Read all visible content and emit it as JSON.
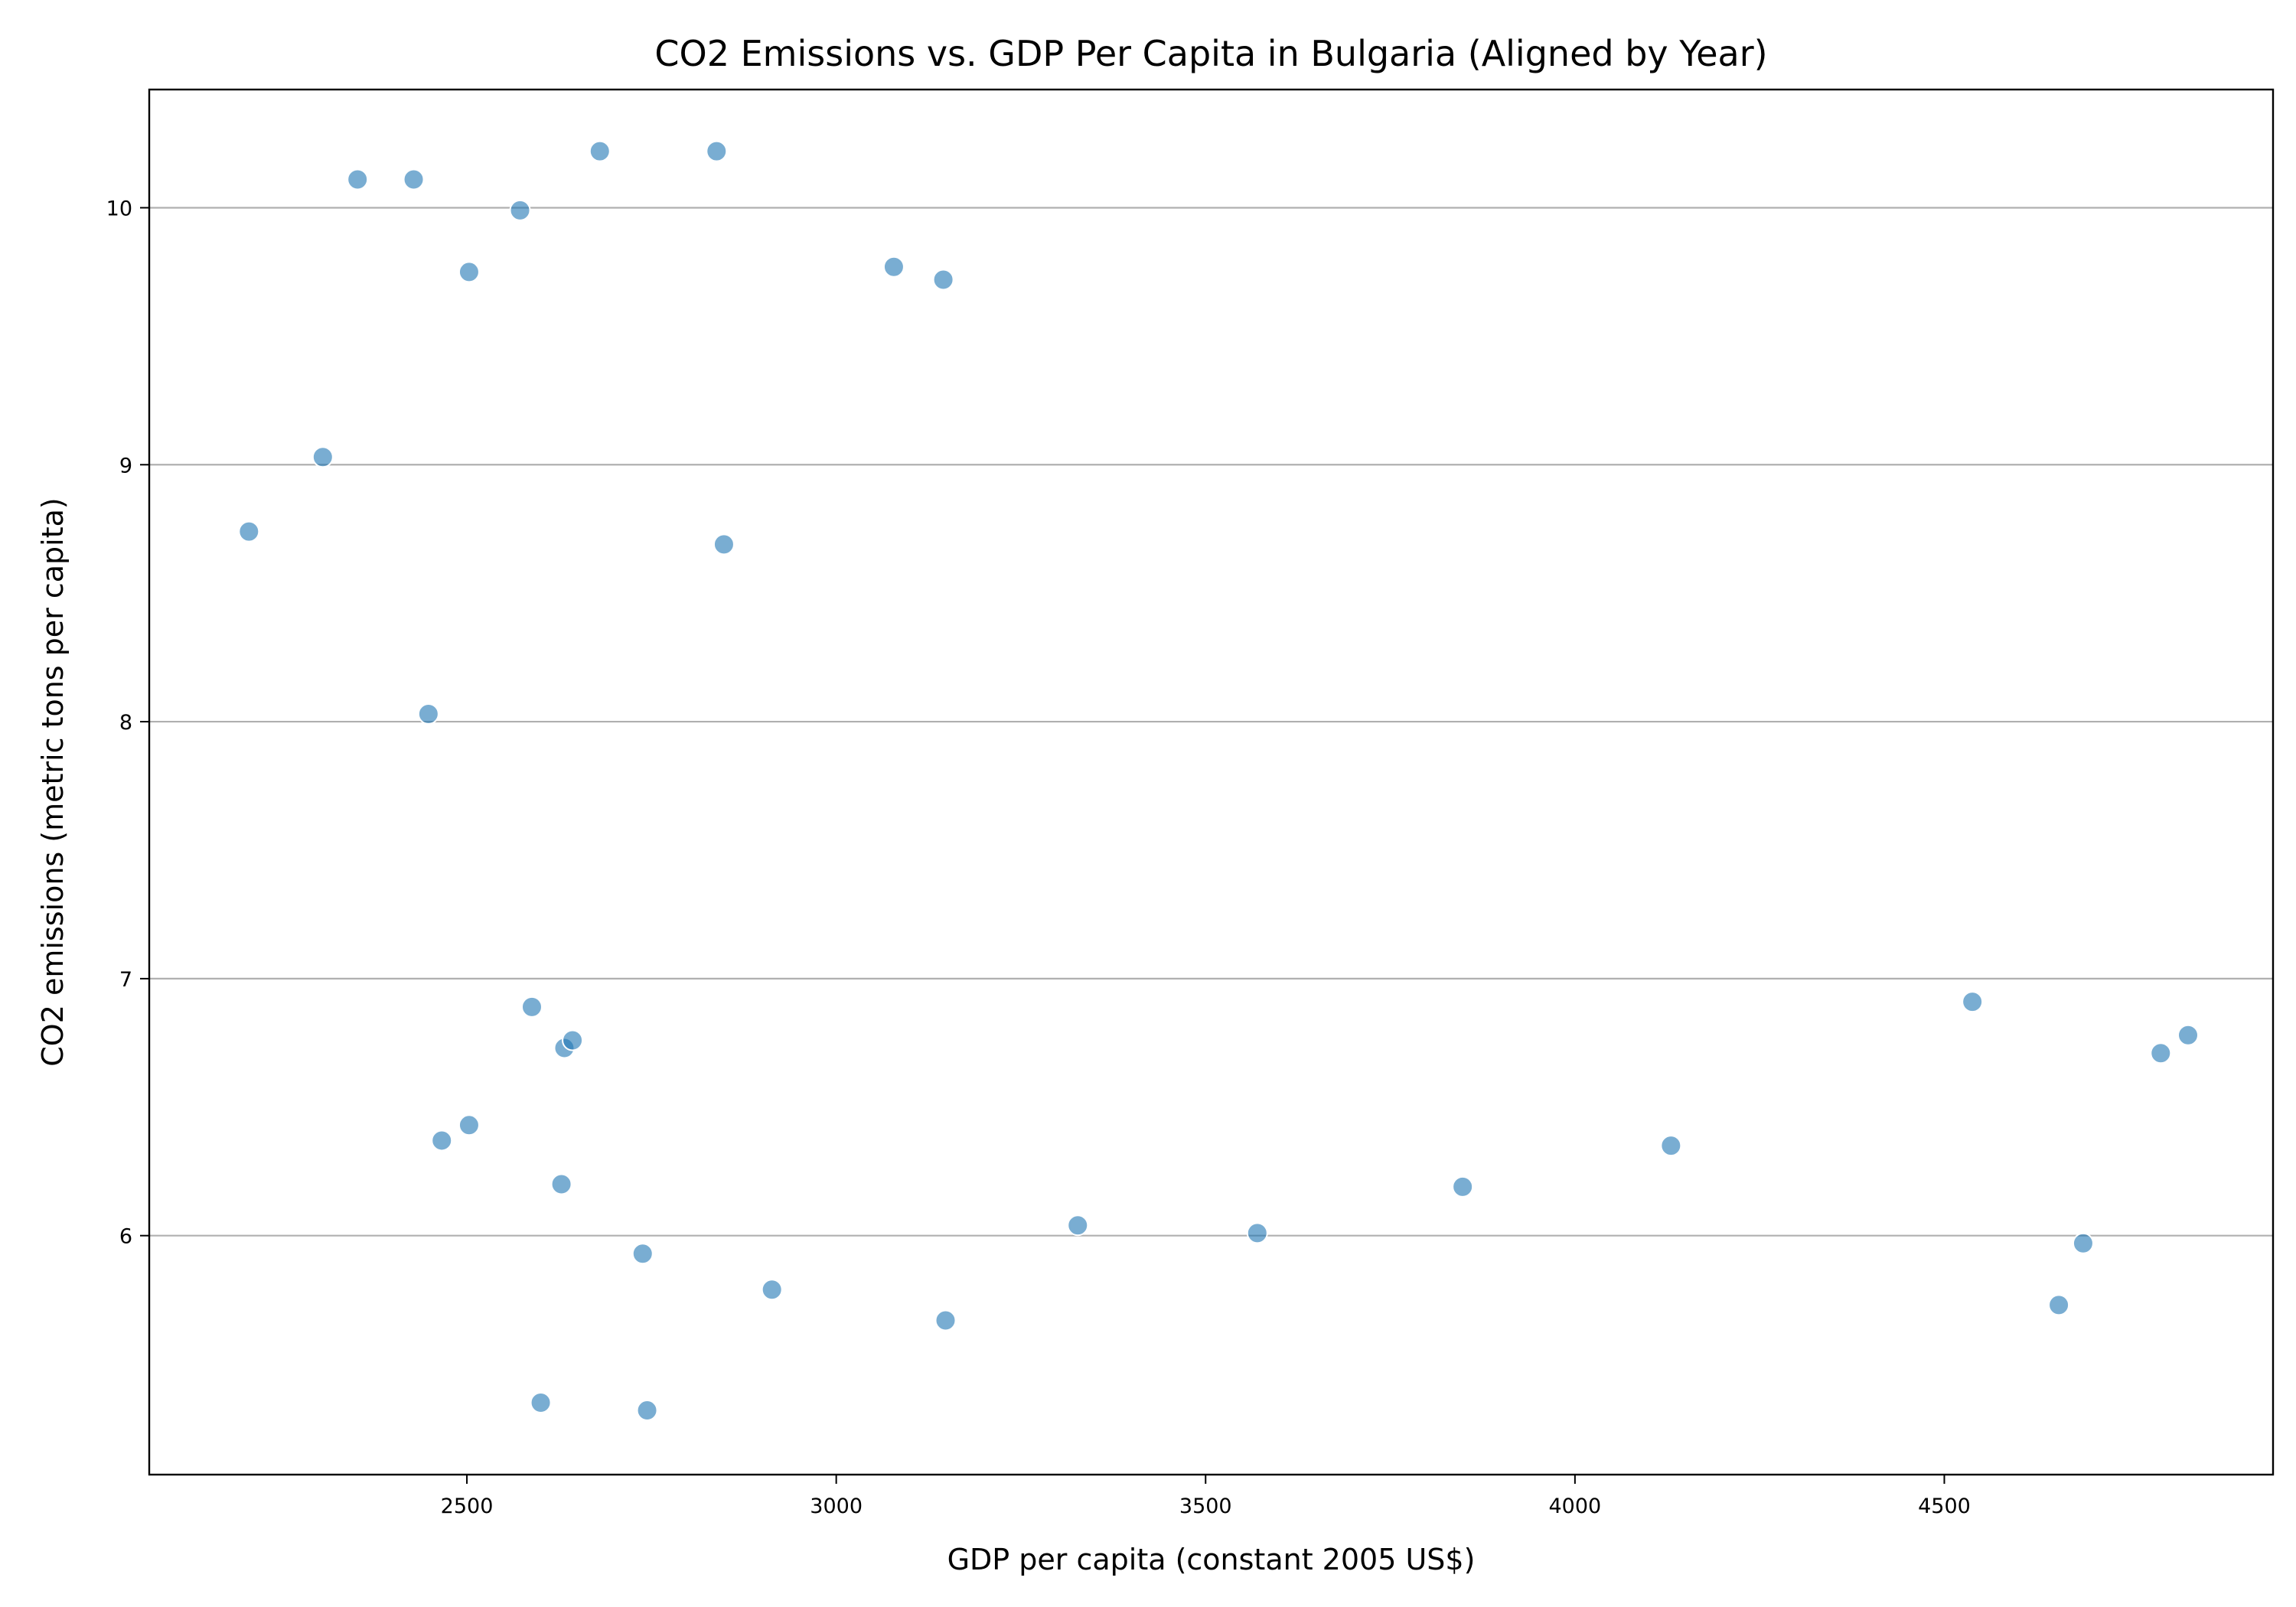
{
  "chart_data": {
    "type": "scatter",
    "title": "CO2 Emissions vs. GDP Per Capita in Bulgaria (Aligned by Year)",
    "xlabel": "GDP per capita (constant 2005 US$)",
    "ylabel": "CO2 emissions (metric tons per capita)",
    "xlim": [
      2070,
      4945
    ],
    "ylim": [
      5.07,
      10.46
    ],
    "xticks": [
      2500,
      3000,
      3500,
      4000,
      4500
    ],
    "yticks": [
      6,
      7,
      8,
      9,
      10
    ],
    "grid": "horizontal",
    "legend": "none",
    "marker_color": "#1f77b4",
    "points": [
      {
        "x": 2205,
        "y": 8.74
      },
      {
        "x": 2305,
        "y": 9.03
      },
      {
        "x": 2352,
        "y": 10.11
      },
      {
        "x": 2428,
        "y": 10.11
      },
      {
        "x": 2448,
        "y": 8.03
      },
      {
        "x": 2466,
        "y": 6.37
      },
      {
        "x": 2503,
        "y": 9.75
      },
      {
        "x": 2503,
        "y": 6.43
      },
      {
        "x": 2572,
        "y": 9.99
      },
      {
        "x": 2588,
        "y": 6.89
      },
      {
        "x": 2600,
        "y": 5.35
      },
      {
        "x": 2628,
        "y": 6.2
      },
      {
        "x": 2632,
        "y": 6.73
      },
      {
        "x": 2643,
        "y": 6.76
      },
      {
        "x": 2680,
        "y": 10.22
      },
      {
        "x": 2738,
        "y": 5.93
      },
      {
        "x": 2744,
        "y": 5.32
      },
      {
        "x": 2838,
        "y": 10.22
      },
      {
        "x": 2848,
        "y": 8.69
      },
      {
        "x": 2913,
        "y": 5.79
      },
      {
        "x": 3078,
        "y": 9.77
      },
      {
        "x": 3145,
        "y": 9.72
      },
      {
        "x": 3148,
        "y": 5.67
      },
      {
        "x": 3327,
        "y": 6.04
      },
      {
        "x": 3570,
        "y": 6.01
      },
      {
        "x": 3848,
        "y": 6.19
      },
      {
        "x": 4130,
        "y": 6.35
      },
      {
        "x": 4538,
        "y": 6.91
      },
      {
        "x": 4655,
        "y": 5.73
      },
      {
        "x": 4688,
        "y": 5.97
      },
      {
        "x": 4793,
        "y": 6.71
      },
      {
        "x": 4830,
        "y": 6.78
      }
    ]
  }
}
